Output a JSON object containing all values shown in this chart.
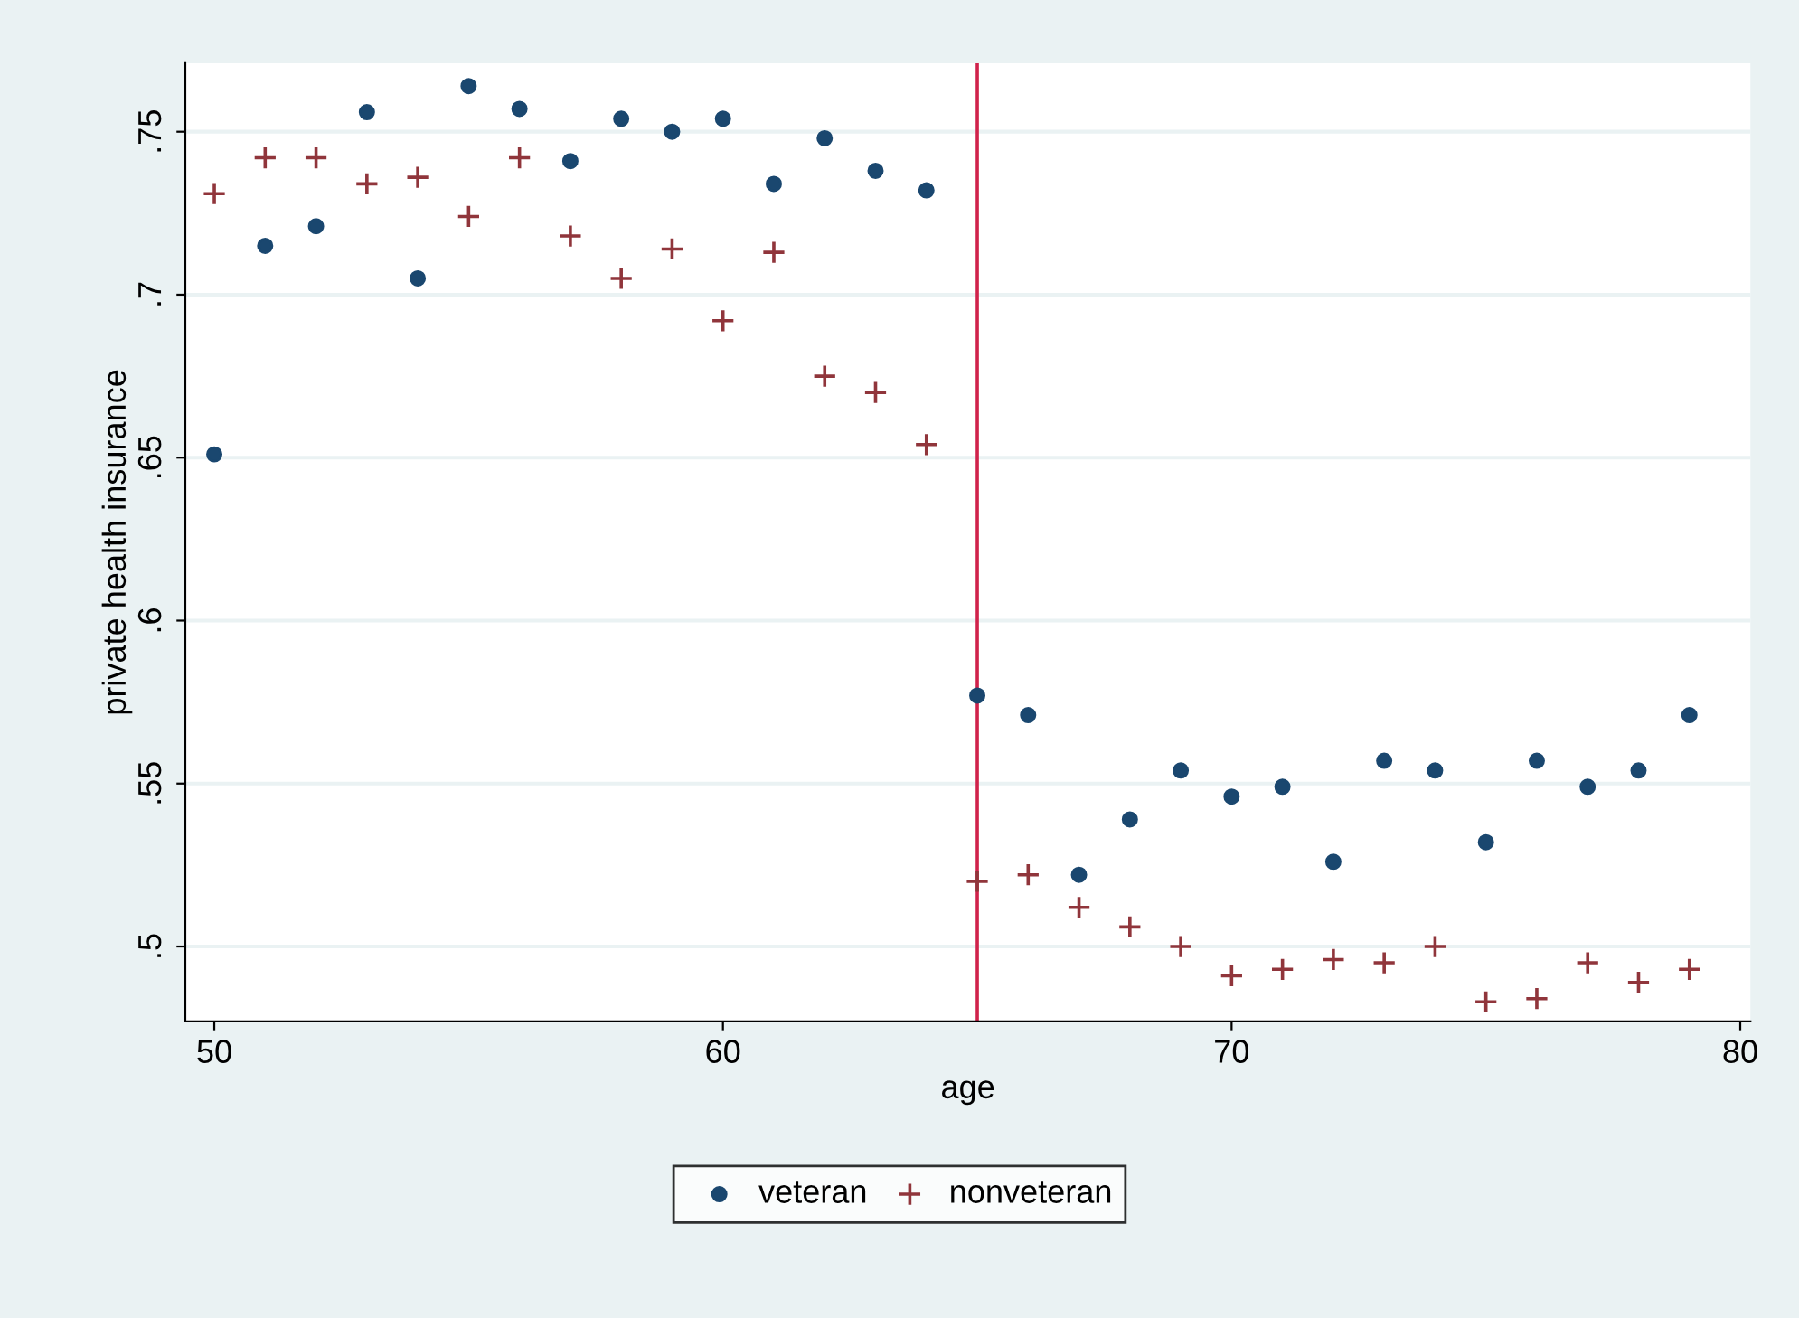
{
  "chart_data": {
    "type": "scatter",
    "xlabel": "age",
    "ylabel": "private health insurance",
    "x": [
      50,
      51,
      52,
      53,
      54,
      55,
      56,
      57,
      58,
      59,
      60,
      61,
      62,
      63,
      64,
      65,
      66,
      67,
      68,
      69,
      70,
      71,
      72,
      73,
      74,
      75,
      76,
      77,
      78,
      79
    ],
    "series": [
      {
        "name": "veteran",
        "color": "#1a476f",
        "marker": "circle",
        "values": [
          0.651,
          0.715,
          0.721,
          0.756,
          0.705,
          0.764,
          0.757,
          0.741,
          0.754,
          0.75,
          0.754,
          0.734,
          0.748,
          0.738,
          0.732,
          0.577,
          0.571,
          0.522,
          0.539,
          0.554,
          0.546,
          0.549,
          0.526,
          0.557,
          0.554,
          0.532,
          0.557,
          0.549,
          0.554,
          0.571
        ]
      },
      {
        "name": "nonveteran",
        "color": "#90353b",
        "marker": "cross",
        "values": [
          0.731,
          0.742,
          0.742,
          0.734,
          0.736,
          0.724,
          0.742,
          0.718,
          0.705,
          0.714,
          0.692,
          0.713,
          0.675,
          0.67,
          0.654,
          0.52,
          0.522,
          0.512,
          0.506,
          0.5,
          0.491,
          0.493,
          0.496,
          0.495,
          0.5,
          0.483,
          0.484,
          0.495,
          0.489,
          0.493
        ]
      }
    ],
    "xlim": [
      49.43,
      80.2
    ],
    "ylim": [
      0.477,
      0.771
    ],
    "xticks": [
      50,
      60,
      70,
      80
    ],
    "yticks": [
      {
        "value": 0.5,
        "label": ".5"
      },
      {
        "value": 0.55,
        "label": ".55"
      },
      {
        "value": 0.6,
        "label": ".6"
      },
      {
        "value": 0.65,
        "label": ".65"
      },
      {
        "value": 0.7,
        "label": ".7"
      },
      {
        "value": 0.75,
        "label": ".75"
      }
    ],
    "grid": "y",
    "legend": "bottom",
    "ref_lines": [
      {
        "axis": "x",
        "value": 65,
        "color": "#d0224b"
      }
    ]
  }
}
